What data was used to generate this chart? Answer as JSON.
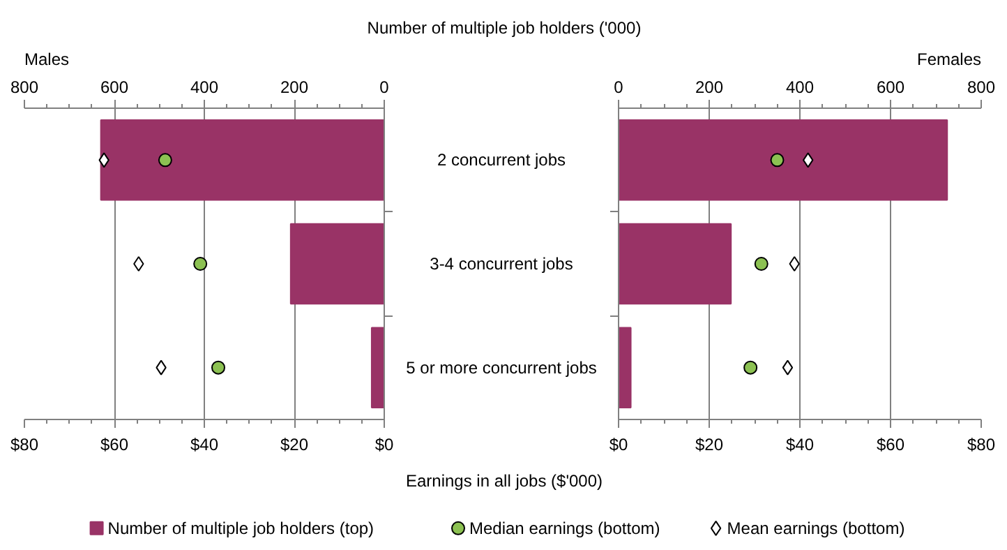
{
  "chart_data": [
    {
      "type": "bar",
      "orientation": "horizontal",
      "title": "Males",
      "x2label": "Number of multiple job holders ('000)",
      "xlabel": "Earnings in all jobs ($'000)",
      "categories": [
        "2 concurrent jobs",
        "3-4 concurrent jobs",
        "5 or more concurrent jobs"
      ],
      "series": [
        {
          "name": "Number of multiple job holders (top)",
          "axis": "x2",
          "color": "#993366",
          "values": [
            630,
            208,
            28
          ]
        },
        {
          "name": "Median earnings (bottom)",
          "type": "scatter",
          "marker": "circle",
          "color": "#8cc152",
          "values": [
            48.7,
            40.9,
            36.9
          ]
        },
        {
          "name": "Mean earnings (bottom)",
          "type": "scatter",
          "marker": "diamond",
          "color": "#ffffff",
          "values": [
            62.3,
            54.6,
            49.6
          ]
        }
      ],
      "xlim": [
        80,
        0
      ],
      "xticks": [
        {
          "value": 80,
          "label": "$80"
        },
        {
          "value": 60,
          "label": "$60"
        },
        {
          "value": 40,
          "label": "$40"
        },
        {
          "value": 20,
          "label": "$20"
        },
        {
          "value": 0,
          "label": "$0"
        }
      ],
      "x2lim": [
        800,
        0
      ],
      "x2ticks": [
        800,
        600,
        400,
        200,
        0
      ],
      "grid": "x",
      "legend": "bottom"
    },
    {
      "type": "bar",
      "orientation": "horizontal",
      "title": "Females",
      "categories": [
        null,
        null,
        null
      ],
      "series": [
        {
          "axis": "x2",
          "color": "#993366",
          "values": [
            725,
            248,
            27
          ]
        },
        {
          "type": "scatter",
          "marker": "circle",
          "color": "#8cc152",
          "values": [
            35.0,
            31.5,
            29.1
          ]
        },
        {
          "type": "scatter",
          "marker": "diamond",
          "color": "#ffffff",
          "values": [
            41.8,
            38.8,
            37.3
          ]
        }
      ],
      "xlim": [
        0,
        80
      ],
      "xticks": [
        {
          "value": 0,
          "label": "$0"
        },
        {
          "value": 20,
          "label": "$20"
        },
        {
          "value": 40,
          "label": "$40"
        },
        {
          "value": 60,
          "label": "$60"
        },
        {
          "value": 80,
          "label": "$80"
        }
      ],
      "x2lim": [
        0,
        800
      ],
      "x2ticks": [
        0,
        200,
        400,
        600,
        800
      ],
      "grid": "x"
    }
  ]
}
